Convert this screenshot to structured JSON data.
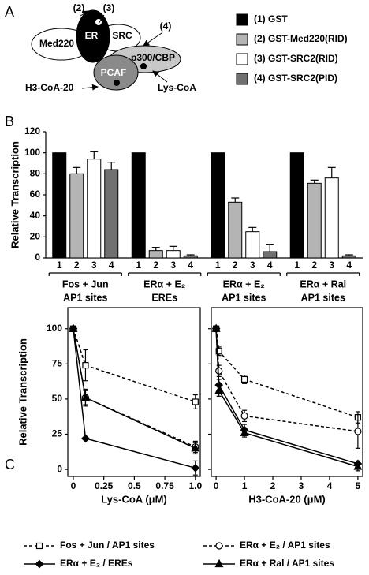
{
  "panel_labels": [
    "A",
    "B",
    "C"
  ],
  "diagram": {
    "nodes": [
      "Med220",
      "ER",
      "SRC",
      "p300/CBP",
      "PCAF"
    ],
    "callouts": [
      "(2)",
      "(3)",
      "(4)"
    ],
    "arrows": [
      "H3-CoA-20",
      "Lys-CoA"
    ]
  },
  "chart_data": [
    {
      "type": "bar",
      "ylabel": "Relative Transcription",
      "ylim": [
        0,
        120
      ],
      "yticks": [
        0,
        20,
        40,
        60,
        80,
        100,
        120
      ],
      "categories": [
        [
          "Fos + Jun",
          "AP1 sites"
        ],
        [
          "ERα + E₂",
          "EREs"
        ],
        [
          "ERα + E₂",
          "AP1 sites"
        ],
        [
          "ERα + Ral",
          "AP1 sites"
        ]
      ],
      "bar_numbers": [
        1,
        2,
        3,
        4
      ],
      "series": [
        {
          "name": "(1) GST",
          "color": "#000000",
          "values": [
            100,
            100,
            100,
            100
          ],
          "errors": [
            0,
            0,
            0,
            0
          ]
        },
        {
          "name": "(2) GST-Med220(RID)",
          "color": "#b4b4b4",
          "values": [
            80,
            7,
            53,
            71
          ],
          "errors": [
            6,
            3,
            4,
            3
          ]
        },
        {
          "name": "(3) GST-SRC2(RID)",
          "color": "#ffffff",
          "values": [
            94,
            7,
            25,
            76
          ],
          "errors": [
            7,
            4,
            4,
            10
          ]
        },
        {
          "name": "(4) GST-SRC2(PID)",
          "color": "#707070",
          "values": [
            84,
            2,
            6,
            2
          ],
          "errors": [
            7,
            1,
            7,
            1
          ]
        }
      ]
    },
    {
      "type": "line",
      "xlabel": "Lys-CoA (μM)",
      "ylabel": "Relative Transcription",
      "xlim": [
        -0.045,
        1.04
      ],
      "xticks": [
        0,
        0.25,
        0.5,
        0.75,
        {
          "value": 1,
          "label": "1.0"
        }
      ],
      "ylim": [
        -5,
        115
      ],
      "yticks": [
        0,
        25,
        50,
        75,
        100
      ],
      "ytick_labels": true,
      "x": [
        0,
        0.1,
        1
      ],
      "series": [
        {
          "name": "Fos + Jun / AP1 sites",
          "color": "#000000",
          "line": "dashed",
          "marker": "square",
          "filled": false,
          "values": [
            100,
            74,
            48
          ],
          "errors": [
            0,
            11,
            5
          ]
        },
        {
          "name": "ERα + E₂ / AP1 sites",
          "color": "#000000",
          "line": "dashed",
          "marker": "circle",
          "filled": false,
          "values": [
            100,
            51,
            16
          ],
          "errors": [
            0,
            6,
            4
          ]
        },
        {
          "name": "ERα + E₂ / EREs",
          "color": "#000000",
          "line": "solid",
          "marker": "diamond",
          "filled": true,
          "values": [
            100,
            22,
            1
          ],
          "errors": [
            0,
            0,
            5
          ]
        },
        {
          "name": "ERα + Ral / AP1 sites",
          "color": "#000000",
          "line": "solid",
          "marker": "triangle",
          "filled": true,
          "values": [
            100,
            51,
            15
          ],
          "errors": [
            0,
            5,
            4
          ]
        }
      ]
    },
    {
      "type": "line",
      "xlabel": "H3-CoA-20 (μM)",
      "xlim": [
        -0.17,
        5.17
      ],
      "xticks": [
        0,
        1,
        2,
        3,
        4,
        5
      ],
      "ylim": [
        -5,
        115
      ],
      "yticks": [
        0,
        25,
        50,
        75,
        100
      ],
      "ytick_labels": false,
      "x": [
        0,
        0.1,
        1,
        5
      ],
      "series": [
        {
          "color": "#000000",
          "line": "dashed",
          "marker": "square",
          "filled": false,
          "values": [
            100,
            84,
            64,
            37
          ],
          "errors": [
            0,
            3,
            3,
            4
          ]
        },
        {
          "color": "#000000",
          "line": "dashed",
          "marker": "circle",
          "filled": false,
          "values": [
            100,
            70,
            38,
            27
          ],
          "errors": [
            0,
            4,
            4,
            12
          ]
        },
        {
          "color": "#000000",
          "line": "solid",
          "marker": "diamond",
          "filled": true,
          "values": [
            100,
            60,
            28,
            4
          ],
          "errors": [
            0,
            4,
            4,
            2
          ]
        },
        {
          "color": "#000000",
          "line": "solid",
          "marker": "triangle",
          "filled": true,
          "values": [
            100,
            56,
            26,
            2
          ],
          "errors": [
            0,
            4,
            3,
            3
          ]
        }
      ]
    }
  ]
}
